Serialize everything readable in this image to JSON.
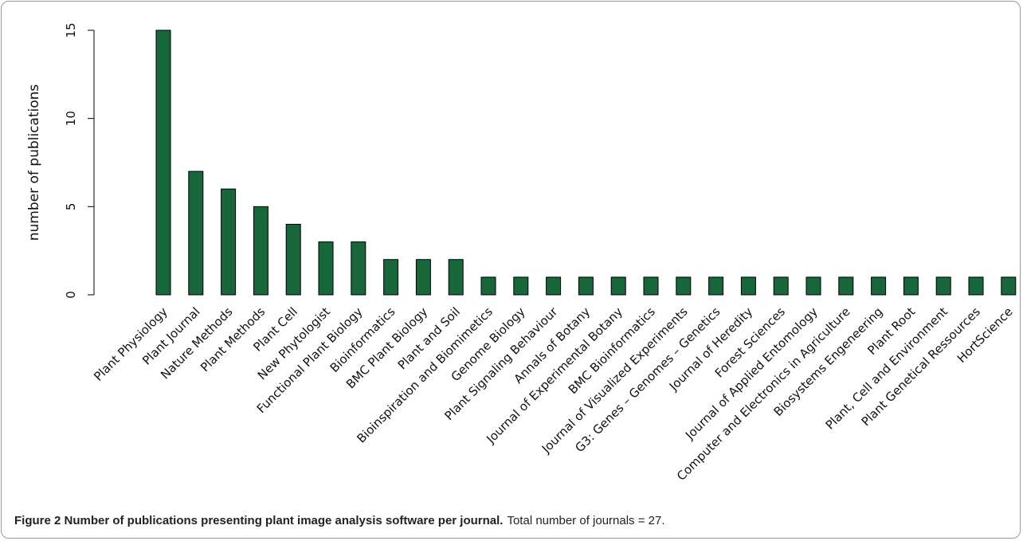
{
  "chart_data": {
    "type": "bar",
    "y_label": "number of publications",
    "categories": [
      "Plant Physiology",
      "Plant Journal",
      "Nature Methods",
      "Plant Methods",
      "Plant Cell",
      "New Phytologist",
      "Functional Plant Biology",
      "Bioinformatics",
      "BMC Plant Biology",
      "Plant and Soil",
      "Bioinspiration and Biomimetics",
      "Genome Biology",
      "Plant Signaling Behaviour",
      "Annals of Botany",
      "Journal of Experimental Botany",
      "BMC Bioinformatics",
      "Journal of Visualized Experiments",
      "G3: Genes – Genomes – Genetics",
      "Journal of Heredity",
      "Forest Sciences",
      "Journal of Applied Entomology",
      "Computer and Electronics in Agriculture",
      "Biosystems Engeneering",
      "Plant Root",
      "Plant, Cell and Environment",
      "Plant Genetical Ressources",
      "HortScience"
    ],
    "values": [
      15,
      7,
      6,
      5,
      4,
      3,
      3,
      2,
      2,
      2,
      1,
      1,
      1,
      1,
      1,
      1,
      1,
      1,
      1,
      1,
      1,
      1,
      1,
      1,
      1,
      1,
      1
    ],
    "color": "#17673a",
    "ylim": [
      0,
      15
    ],
    "yticks": [
      0,
      5,
      10,
      15
    ],
    "caption": {
      "title": "Figure 2 Number of publications presenting plant image analysis software per journal.",
      "text": "Total number of journals = 27."
    }
  }
}
